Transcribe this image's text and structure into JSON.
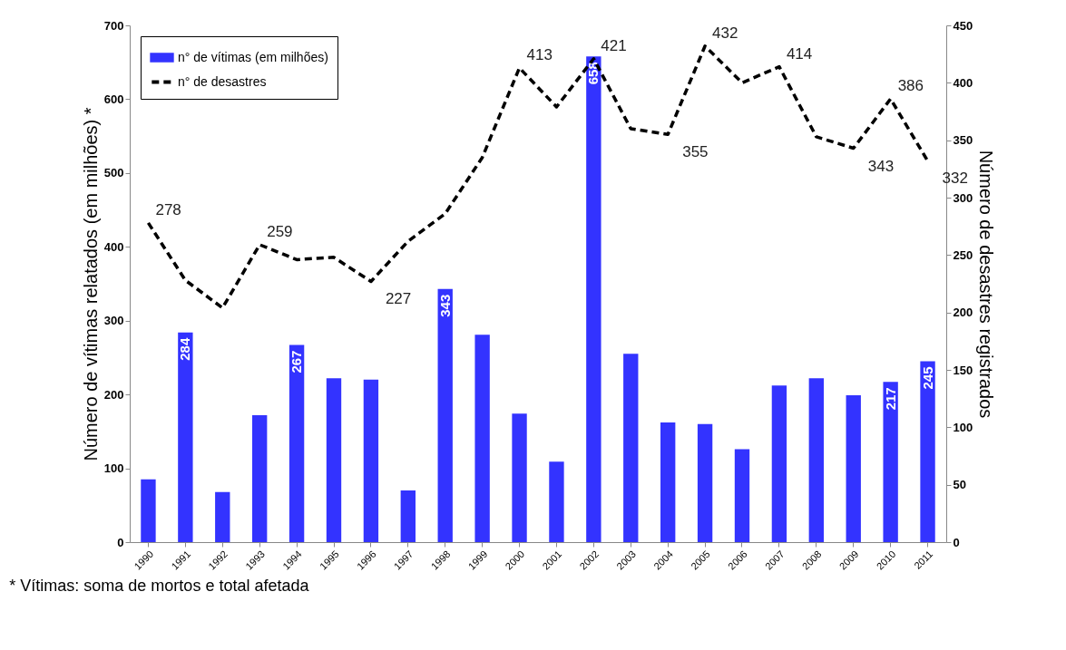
{
  "chart_data": {
    "type": "bar",
    "ylabel": "Número de vítimas relatados (em milhões) *",
    "y2label": "Número de desastres registrados",
    "categories": [
      "1990",
      "1991",
      "1992",
      "1993",
      "1994",
      "1995",
      "1996",
      "1997",
      "1998",
      "1999",
      "2000",
      "2001",
      "2002",
      "2003",
      "2004",
      "2005",
      "2006",
      "2007",
      "2008",
      "2009",
      "2010",
      "2011"
    ],
    "series": [
      {
        "name": "n° de vítimas (em milhões)",
        "color": "#3333ff",
        "values": [
          85,
          284,
          68,
          172,
          267,
          222,
          220,
          70,
          343,
          281,
          174,
          109,
          658,
          255,
          162,
          160,
          126,
          212,
          222,
          199,
          217,
          245
        ],
        "value_labels": [
          null,
          "284",
          null,
          null,
          "267",
          null,
          null,
          null,
          "343",
          null,
          null,
          null,
          "658",
          null,
          null,
          null,
          null,
          null,
          null,
          null,
          "217",
          "245"
        ]
      },
      {
        "name": "n° de desastres",
        "type": "line",
        "axis": "y2",
        "color": "#000000",
        "line_style": "dashed",
        "values": [
          278,
          228,
          204,
          259,
          246,
          248,
          227,
          262,
          286,
          335,
          413,
          379,
          421,
          360,
          355,
          432,
          400,
          414,
          353,
          343,
          386,
          332
        ],
        "value_labels": [
          "278",
          null,
          null,
          "259",
          null,
          null,
          "227",
          null,
          null,
          null,
          "413",
          null,
          "421",
          null,
          "355",
          "432",
          null,
          "414",
          null,
          "343",
          "386",
          "332"
        ]
      }
    ],
    "ylim": [
      0,
      700
    ],
    "yticks": [
      0,
      100,
      200,
      300,
      400,
      500,
      600,
      700
    ],
    "y2lim": [
      0,
      450
    ],
    "y2ticks": [
      0,
      50,
      100,
      150,
      200,
      250,
      300,
      350,
      400,
      450
    ],
    "grid": false,
    "legend": "top left",
    "marker": "none",
    "annotations": [
      "* Vítimas: soma de mortos e total afetada"
    ]
  }
}
